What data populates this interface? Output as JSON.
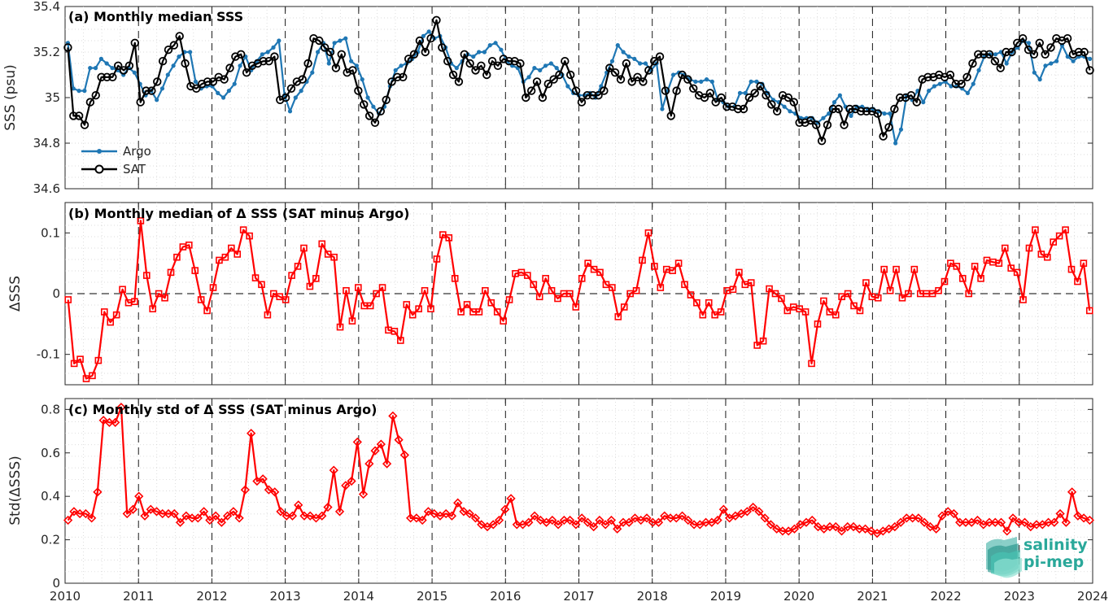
{
  "colors": {
    "argo": "#1f77b4",
    "sat": "#000000",
    "delta": "#ff0000",
    "logo": "#2aa89a"
  },
  "logo": {
    "line1": "salinity",
    "line2": "pi-mep"
  },
  "chart_data": [
    {
      "type": "line",
      "title": "(a) Monthly median SSS",
      "xlabel": "",
      "ylabel": "SSS (psu)",
      "xlim": [
        2010,
        2024
      ],
      "ylim": [
        34.6,
        35.4
      ],
      "yticks": [
        "34.6",
        "34.8",
        "35",
        "35.2",
        "35.4"
      ],
      "xticks": [
        "2010",
        "2011",
        "2012",
        "2013",
        "2014",
        "2015",
        "2016",
        "2017",
        "2018",
        "2019",
        "2020",
        "2021",
        "2022",
        "2023",
        "2024"
      ],
      "grid": true,
      "legend": "bottom-left",
      "series": [
        {
          "name": "Argo",
          "marker": "dot",
          "color": "#1f77b4",
          "values": [
            35.24,
            35.04,
            35.03,
            35.03,
            35.13,
            35.13,
            35.17,
            35.15,
            35.13,
            35.12,
            35.1,
            35.13,
            35.11,
            35.06,
            35.01,
            35.03,
            34.99,
            35.04,
            35.1,
            35.14,
            35.18,
            35.2,
            35.2,
            35.07,
            35.04,
            35.05,
            35.05,
            35.02,
            35.0,
            35.03,
            35.06,
            35.14,
            35.18,
            35.12,
            35.16,
            35.19,
            35.2,
            35.22,
            35.25,
            35.01,
            34.94,
            35.0,
            35.03,
            35.07,
            35.11,
            35.2,
            35.24,
            35.15,
            35.24,
            35.25,
            35.26,
            35.16,
            35.14,
            35.08,
            35.0,
            34.96,
            34.93,
            34.96,
            35.05,
            35.12,
            35.14,
            35.15,
            35.17,
            35.2,
            35.27,
            35.29,
            35.26,
            35.27,
            35.22,
            35.15,
            35.13,
            35.16,
            35.19,
            35.18,
            35.2,
            35.2,
            35.23,
            35.24,
            35.21,
            35.16,
            35.14,
            35.13,
            35.07,
            35.09,
            35.13,
            35.12,
            35.14,
            35.15,
            35.13,
            35.1,
            35.05,
            35.02,
            35.01,
            35.01,
            35.02,
            35.0,
            35.05,
            35.11,
            35.16,
            35.23,
            35.2,
            35.18,
            35.17,
            35.15,
            35.15,
            35.12,
            35.15,
            34.95,
            35.03,
            35.1,
            35.11,
            35.1,
            35.08,
            35.07,
            35.07,
            35.08,
            35.07,
            34.99,
            34.98,
            34.96,
            34.96,
            35.02,
            35.02,
            35.07,
            35.07,
            35.06,
            35.02,
            34.99,
            34.98,
            34.96,
            34.94,
            34.93,
            34.91,
            34.91,
            34.91,
            34.89,
            34.91,
            34.93,
            34.98,
            35.01,
            34.96,
            34.92,
            34.96,
            34.96,
            34.95,
            34.95,
            34.94,
            34.93,
            34.93,
            34.8,
            34.86,
            35.01,
            34.99,
            35.03,
            34.98,
            35.03,
            35.05,
            35.06,
            35.07,
            35.05,
            35.05,
            35.04,
            35.02,
            35.06,
            35.12,
            35.18,
            35.19,
            35.19,
            35.2,
            35.15,
            35.2,
            35.22,
            35.25,
            35.24,
            35.11,
            35.08,
            35.14,
            35.15,
            35.16,
            35.23,
            35.18,
            35.16,
            35.18,
            35.18,
            35.17
          ]
        },
        {
          "name": "SAT",
          "marker": "circle",
          "color": "#000000",
          "values": [
            35.22,
            34.92,
            34.92,
            34.88,
            34.98,
            35.01,
            35.09,
            35.09,
            35.09,
            35.14,
            35.12,
            35.14,
            35.24,
            34.98,
            35.03,
            35.03,
            35.07,
            35.16,
            35.21,
            35.23,
            35.27,
            35.15,
            35.05,
            35.04,
            35.06,
            35.07,
            35.07,
            35.09,
            35.08,
            35.13,
            35.18,
            35.19,
            35.11,
            35.14,
            35.15,
            35.16,
            35.16,
            35.18,
            34.99,
            35.0,
            35.04,
            35.07,
            35.08,
            35.15,
            35.26,
            35.25,
            35.22,
            35.2,
            35.13,
            35.19,
            35.11,
            35.12,
            35.03,
            34.97,
            34.92,
            34.89,
            34.94,
            34.99,
            35.07,
            35.09,
            35.09,
            35.17,
            35.19,
            35.25,
            35.2,
            35.26,
            35.34,
            35.22,
            35.16,
            35.1,
            35.07,
            35.19,
            35.15,
            35.12,
            35.14,
            35.1,
            35.16,
            35.14,
            35.17,
            35.16,
            35.16,
            35.15,
            35.0,
            35.03,
            35.07,
            35.0,
            35.06,
            35.08,
            35.1,
            35.16,
            35.1,
            35.03,
            34.98,
            35.01,
            35.01,
            35.01,
            35.03,
            35.13,
            35.11,
            35.08,
            35.15,
            35.07,
            35.09,
            35.07,
            35.12,
            35.16,
            35.18,
            35.03,
            34.92,
            35.03,
            35.1,
            35.08,
            35.04,
            35.01,
            35.0,
            35.02,
            34.98,
            35.0,
            34.96,
            34.96,
            34.95,
            34.95,
            35.0,
            35.02,
            35.05,
            35.01,
            34.97,
            34.94,
            35.01,
            35.0,
            34.98,
            34.89,
            34.89,
            34.9,
            34.88,
            34.81,
            34.88,
            34.95,
            34.95,
            34.88,
            34.95,
            34.95,
            34.94,
            34.94,
            34.94,
            34.93,
            34.83,
            34.87,
            34.95,
            35.0,
            35.0,
            35.01,
            34.98,
            35.08,
            35.09,
            35.09,
            35.1,
            35.09,
            35.1,
            35.06,
            35.06,
            35.09,
            35.15,
            35.19,
            35.19,
            35.19,
            35.16,
            35.13,
            35.2,
            35.2,
            35.24,
            35.26,
            35.21,
            35.19,
            35.24,
            35.19,
            35.22,
            35.26,
            35.25,
            35.26,
            35.19,
            35.2,
            35.2,
            35.12
          ]
        }
      ]
    },
    {
      "type": "line",
      "title": "(b) Monthly median of Δ SSS (SAT minus Argo)",
      "xlabel": "",
      "ylabel": "ΔSSS",
      "xlim": [
        2010,
        2024
      ],
      "ylim": [
        -0.15,
        0.15
      ],
      "yticks": [
        "-0.1",
        "0",
        "0.1"
      ],
      "xticks": [
        "2010",
        "2011",
        "2012",
        "2013",
        "2014",
        "2015",
        "2016",
        "2017",
        "2018",
        "2019",
        "2020",
        "2021",
        "2022",
        "2023",
        "2024"
      ],
      "grid": true,
      "zero_line": true,
      "series": [
        {
          "name": "",
          "marker": "square",
          "color": "#ff0000",
          "values": [
            -0.01,
            -0.115,
            -0.108,
            -0.14,
            -0.135,
            -0.11,
            -0.03,
            -0.047,
            -0.035,
            0.007,
            -0.015,
            -0.013,
            0.12,
            0.03,
            -0.025,
            0.0,
            -0.007,
            0.035,
            0.06,
            0.077,
            0.08,
            0.038,
            -0.01,
            -0.028,
            0.01,
            0.055,
            0.06,
            0.075,
            0.065,
            0.105,
            0.095,
            0.026,
            0.015,
            -0.035,
            0.0,
            -0.005,
            -0.01,
            0.03,
            0.045,
            0.075,
            0.012,
            0.025,
            0.082,
            0.065,
            0.06,
            -0.055,
            0.005,
            -0.045,
            0.01,
            -0.02,
            -0.02,
            0.0,
            0.01,
            -0.06,
            -0.062,
            -0.077,
            -0.018,
            -0.035,
            -0.025,
            0.005,
            -0.025,
            0.057,
            0.097,
            0.092,
            0.025,
            -0.03,
            -0.018,
            -0.03,
            -0.03,
            0.005,
            -0.015,
            -0.03,
            -0.045,
            -0.01,
            0.033,
            0.035,
            0.03,
            0.015,
            -0.005,
            0.025,
            0.005,
            -0.008,
            0.0,
            0.0,
            -0.022,
            0.025,
            0.05,
            0.04,
            0.035,
            0.015,
            0.01,
            -0.038,
            -0.022,
            0.0,
            0.005,
            0.055,
            0.1,
            0.045,
            0.01,
            0.04,
            0.038,
            0.05,
            0.015,
            -0.002,
            -0.015,
            -0.035,
            -0.015,
            -0.035,
            -0.03,
            0.005,
            0.007,
            0.035,
            0.015,
            0.018,
            -0.085,
            -0.078,
            0.008,
            0.0,
            -0.008,
            -0.028,
            -0.022,
            -0.025,
            -0.03,
            -0.115,
            -0.05,
            -0.012,
            -0.03,
            -0.035,
            -0.005,
            0.0,
            -0.02,
            -0.028,
            0.018,
            -0.005,
            -0.007,
            0.04,
            0.005,
            0.04,
            -0.007,
            0.0,
            0.04,
            0.0,
            0.0,
            0.0,
            0.005,
            0.02,
            0.05,
            0.045,
            0.025,
            0.0,
            0.045,
            0.025,
            0.055,
            0.052,
            0.05,
            0.075,
            0.042,
            0.035,
            -0.01,
            0.075,
            0.105,
            0.065,
            0.06,
            0.085,
            0.095,
            0.105,
            0.04,
            0.02,
            0.05,
            -0.028
          ]
        }
      ]
    },
    {
      "type": "line",
      "title": "(c) Monthly std of Δ SSS (SAT minus Argo)",
      "xlabel": "",
      "ylabel": "Std(ΔSSS)",
      "xlim": [
        2010,
        2024
      ],
      "ylim": [
        0,
        0.85
      ],
      "yticks": [
        "0",
        "0.2",
        "0.4",
        "0.6",
        "0.8"
      ],
      "xticks": [
        "2010",
        "2011",
        "2012",
        "2013",
        "2014",
        "2015",
        "2016",
        "2017",
        "2018",
        "2019",
        "2020",
        "2021",
        "2022",
        "2023",
        "2024"
      ],
      "grid": true,
      "series": [
        {
          "name": "",
          "marker": "diamond",
          "color": "#ff0000",
          "values": [
            0.29,
            0.33,
            0.32,
            0.32,
            0.3,
            0.42,
            0.75,
            0.74,
            0.74,
            0.81,
            0.32,
            0.34,
            0.4,
            0.31,
            0.34,
            0.33,
            0.32,
            0.32,
            0.32,
            0.28,
            0.31,
            0.3,
            0.3,
            0.33,
            0.29,
            0.31,
            0.28,
            0.31,
            0.33,
            0.3,
            0.43,
            0.69,
            0.47,
            0.48,
            0.43,
            0.42,
            0.33,
            0.31,
            0.31,
            0.36,
            0.31,
            0.31,
            0.3,
            0.31,
            0.35,
            0.52,
            0.33,
            0.45,
            0.47,
            0.65,
            0.41,
            0.55,
            0.61,
            0.64,
            0.55,
            0.77,
            0.66,
            0.59,
            0.3,
            0.3,
            0.29,
            0.33,
            0.32,
            0.31,
            0.32,
            0.31,
            0.37,
            0.33,
            0.32,
            0.3,
            0.27,
            0.26,
            0.27,
            0.29,
            0.34,
            0.39,
            0.27,
            0.27,
            0.28,
            0.31,
            0.29,
            0.28,
            0.29,
            0.27,
            0.29,
            0.29,
            0.27,
            0.3,
            0.28,
            0.26,
            0.29,
            0.27,
            0.29,
            0.25,
            0.28,
            0.28,
            0.3,
            0.29,
            0.3,
            0.28,
            0.28,
            0.31,
            0.3,
            0.3,
            0.31,
            0.29,
            0.27,
            0.27,
            0.28,
            0.28,
            0.29,
            0.34,
            0.3,
            0.31,
            0.32,
            0.33,
            0.35,
            0.33,
            0.3,
            0.27,
            0.25,
            0.24,
            0.24,
            0.25,
            0.27,
            0.28,
            0.29,
            0.26,
            0.25,
            0.26,
            0.26,
            0.24,
            0.26,
            0.26,
            0.25,
            0.25,
            0.24,
            0.23,
            0.24,
            0.25,
            0.26,
            0.28,
            0.3,
            0.3,
            0.3,
            0.28,
            0.26,
            0.25,
            0.31,
            0.33,
            0.32,
            0.28,
            0.28,
            0.28,
            0.29,
            0.27,
            0.28,
            0.28,
            0.28,
            0.24,
            0.3,
            0.28,
            0.28,
            0.26,
            0.27,
            0.27,
            0.28,
            0.28,
            0.32,
            0.28,
            0.42,
            0.31,
            0.3,
            0.29
          ]
        }
      ]
    }
  ]
}
